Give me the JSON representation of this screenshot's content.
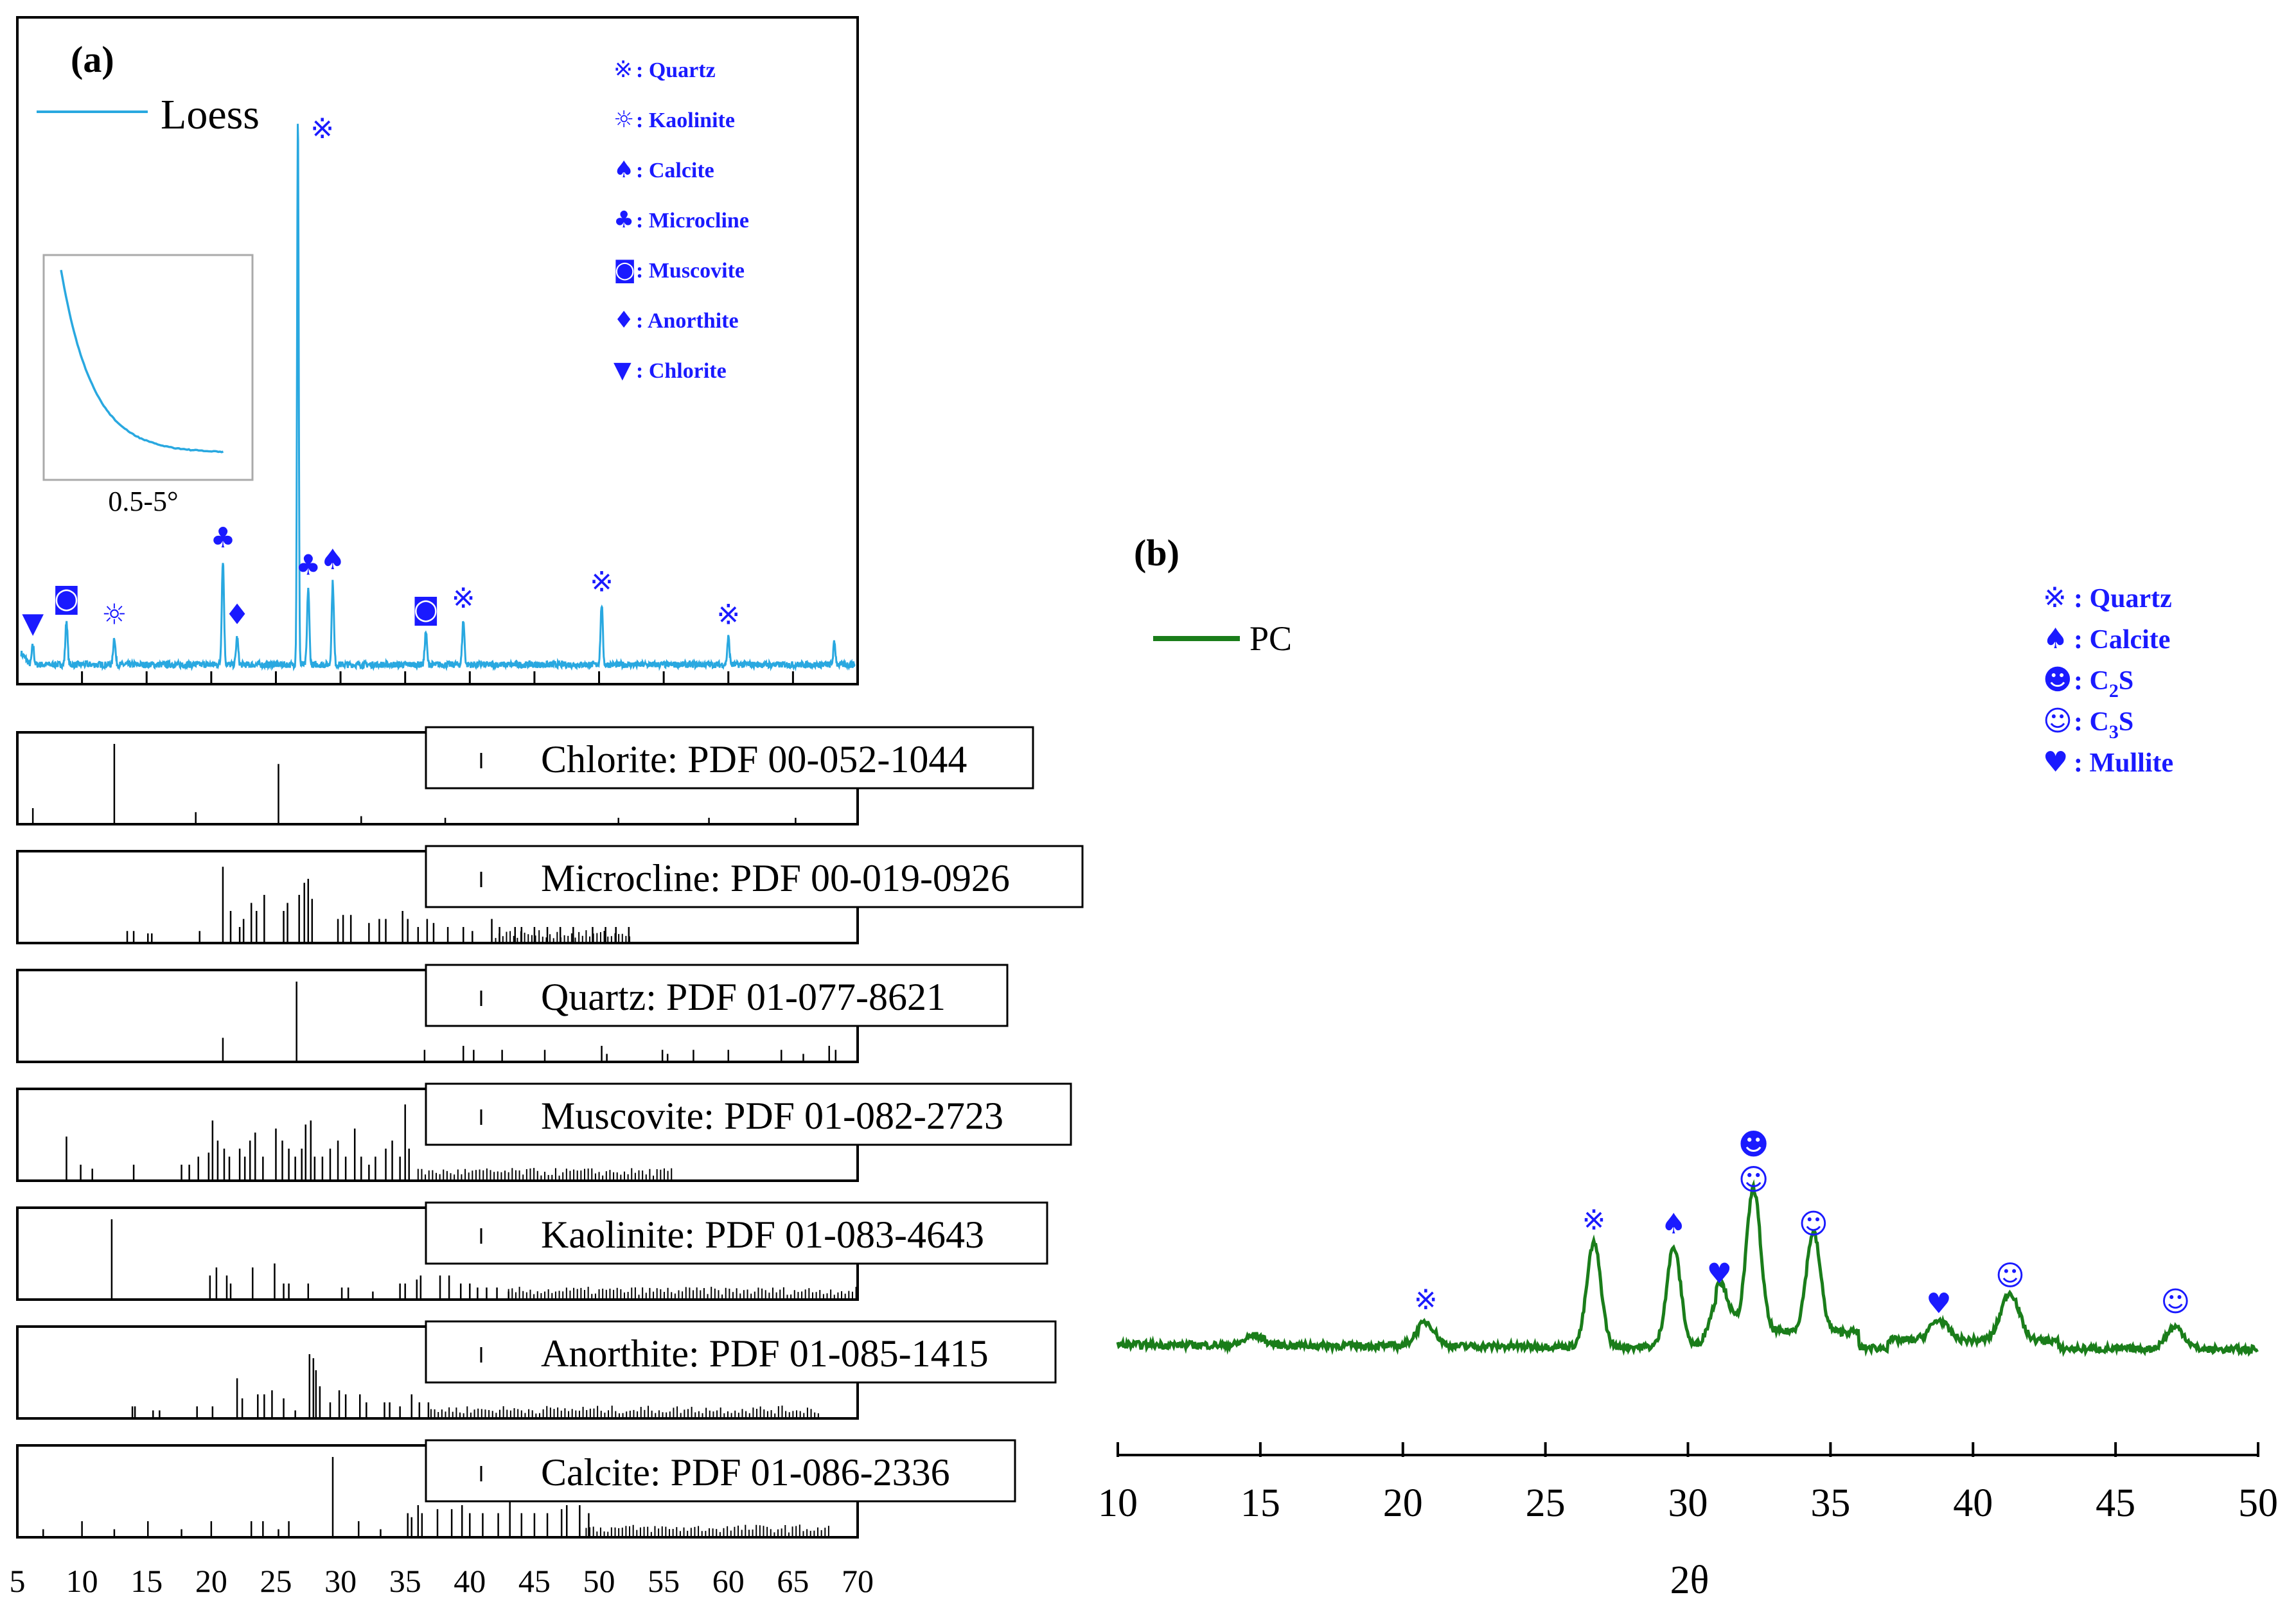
{
  "colors": {
    "loess": "#29a8e0",
    "pc": "#1a7d1a",
    "marker": "#1a1aff",
    "ref": "#000000"
  },
  "panel_a": {
    "label": "(a)",
    "legend_label": "Loess",
    "inset_label": "0.5-5°",
    "phase_legend": [
      {
        "symbol": "※",
        "text": ": Quartz"
      },
      {
        "symbol": "☼",
        "text": ": Kaolinite"
      },
      {
        "symbol": "♠",
        "text": ": Calcite"
      },
      {
        "symbol": "♣",
        "text": ": Microcline"
      },
      {
        "symbol": "◙",
        "text": ": Muscovite"
      },
      {
        "symbol": "♦",
        "text": ": Anorthite"
      },
      {
        "symbol": "▼",
        "text": ": Chlorite"
      }
    ],
    "ref_labels": [
      "Chlorite: PDF 00-052-1044",
      "Microcline: PDF 00-019-0926",
      "Quartz: PDF 01-077-8621",
      "Muscovite: PDF 01-082-2723",
      "Kaolinite: PDF 01-083-4643",
      "Anorthite: PDF 01-085-1415",
      "Calcite: PDF 01-086-2336"
    ],
    "x_ticks": [
      "5",
      "10",
      "15",
      "20",
      "25",
      "30",
      "35",
      "40",
      "45",
      "50",
      "55",
      "60",
      "65",
      "70"
    ]
  },
  "panel_b": {
    "label": "(b)",
    "legend_label": "PC",
    "xlabel": "2θ",
    "phase_legend": [
      {
        "symbol": "※",
        "text": ": Quartz",
        "sub": ""
      },
      {
        "symbol": "♠",
        "text": ": Calcite",
        "sub": ""
      },
      {
        "symbol": "☻",
        "text": ": C",
        "sub": "2",
        "tail": "S"
      },
      {
        "symbol": "☺",
        "text": ": C",
        "sub": "3",
        "tail": "S"
      },
      {
        "symbol": "♥",
        "text": ": Mullite",
        "sub": ""
      }
    ],
    "x_ticks": [
      "10",
      "15",
      "20",
      "25",
      "30",
      "35",
      "40",
      "45",
      "50"
    ]
  },
  "chart_data": [
    {
      "type": "line",
      "name": "Loess XRD",
      "xlim": [
        5,
        70
      ],
      "series": [
        {
          "name": "Loess",
          "peaks": [
            {
              "x": 6.2,
              "y": 0.035,
              "symbol": "▼"
            },
            {
              "x": 8.8,
              "y": 0.08,
              "symbol": "◙"
            },
            {
              "x": 12.5,
              "y": 0.05,
              "symbol": "☼"
            },
            {
              "x": 20.9,
              "y": 0.19,
              "symbol": "♣"
            },
            {
              "x": 22.0,
              "y": 0.05,
              "symbol": "♦"
            },
            {
              "x": 26.7,
              "y": 1.0,
              "symbol": "※"
            },
            {
              "x": 27.5,
              "y": 0.14,
              "symbol": "♣"
            },
            {
              "x": 29.4,
              "y": 0.15,
              "symbol": "♠"
            },
            {
              "x": 36.6,
              "y": 0.06,
              "symbol": "◙"
            },
            {
              "x": 39.5,
              "y": 0.08,
              "symbol": "※"
            },
            {
              "x": 50.2,
              "y": 0.11,
              "symbol": "※"
            },
            {
              "x": 60.0,
              "y": 0.05,
              "symbol": "※"
            },
            {
              "x": 68.2,
              "y": 0.04,
              "symbol": ""
            }
          ]
        }
      ],
      "inset": {
        "x_range": "0.5-5°",
        "trend": "monotonic decreasing"
      }
    },
    {
      "type": "bar",
      "name": "PDF reference patterns",
      "xlim": [
        5,
        70
      ],
      "series": [
        {
          "name": "Chlorite: PDF 00-052-1044",
          "lines": [
            [
              6.2,
              0.2
            ],
            [
              12.5,
              1
            ],
            [
              18.8,
              0.15
            ],
            [
              25.2,
              0.75
            ],
            [
              31.6,
              0.1
            ],
            [
              38.1,
              0.08
            ],
            [
              51.5,
              0.08
            ],
            [
              58.5,
              0.08
            ],
            [
              65.2,
              0.08
            ]
          ]
        },
        {
          "name": "Microcline: PDF 00-019-0926",
          "lines": [
            [
              13.5,
              0.15
            ],
            [
              14.0,
              0.15
            ],
            [
              15.1,
              0.12
            ],
            [
              15.4,
              0.12
            ],
            [
              19.1,
              0.15
            ],
            [
              20.9,
              0.95
            ],
            [
              21.5,
              0.4
            ],
            [
              22.2,
              0.2
            ],
            [
              22.5,
              0.3
            ],
            [
              23.1,
              0.5
            ],
            [
              23.5,
              0.4
            ],
            [
              24.1,
              0.6
            ],
            [
              25.6,
              0.4
            ],
            [
              25.9,
              0.5
            ],
            [
              26.8,
              0.6
            ],
            [
              27.2,
              0.75
            ],
            [
              27.5,
              0.8
            ],
            [
              27.8,
              0.55
            ],
            [
              29.8,
              0.3
            ],
            [
              30.2,
              0.35
            ],
            [
              30.8,
              0.35
            ],
            [
              32.2,
              0.25
            ],
            [
              33.0,
              0.3
            ],
            [
              33.5,
              0.3
            ],
            [
              34.8,
              0.4
            ],
            [
              35.2,
              0.3
            ],
            [
              36.0,
              0.2
            ],
            [
              36.7,
              0.3
            ],
            [
              37.2,
              0.25
            ],
            [
              38.3,
              0.2
            ],
            [
              39.5,
              0.2
            ],
            [
              40.2,
              0.15
            ],
            [
              41.7,
              0.3
            ],
            [
              42.3,
              0.2
            ],
            [
              43.5,
              0.2
            ],
            [
              44.0,
              0.2
            ],
            [
              45.0,
              0.2
            ],
            [
              46.0,
              0.2
            ],
            [
              47.0,
              0.2
            ],
            [
              48.0,
              0.2
            ],
            [
              49.5,
              0.2
            ],
            [
              50.5,
              0.2
            ],
            [
              51.3,
              0.2
            ],
            [
              52.3,
              0.2
            ]
          ]
        },
        {
          "name": "Quartz: PDF 01-077-8621",
          "lines": [
            [
              20.9,
              0.3
            ],
            [
              26.6,
              1
            ],
            [
              36.5,
              0.15
            ],
            [
              39.5,
              0.2
            ],
            [
              40.3,
              0.15
            ],
            [
              42.5,
              0.15
            ],
            [
              45.8,
              0.15
            ],
            [
              50.2,
              0.2
            ],
            [
              50.6,
              0.1
            ],
            [
              54.9,
              0.15
            ],
            [
              55.3,
              0.1
            ],
            [
              57.3,
              0.15
            ],
            [
              60.0,
              0.15
            ],
            [
              64.1,
              0.15
            ],
            [
              65.8,
              0.1
            ],
            [
              67.8,
              0.2
            ],
            [
              68.3,
              0.15
            ]
          ]
        },
        {
          "name": "Muscovite: PDF 01-082-2723",
          "lines": [
            [
              8.8,
              0.55
            ],
            [
              9.9,
              0.2
            ],
            [
              10.8,
              0.15
            ],
            [
              14.0,
              0.2
            ],
            [
              17.7,
              0.2
            ],
            [
              18.3,
              0.2
            ],
            [
              19.0,
              0.3
            ],
            [
              19.8,
              0.35
            ],
            [
              20.1,
              0.75
            ],
            [
              20.5,
              0.5
            ],
            [
              21.0,
              0.4
            ],
            [
              21.4,
              0.3
            ],
            [
              22.2,
              0.4
            ],
            [
              22.6,
              0.3
            ],
            [
              23.0,
              0.5
            ],
            [
              23.4,
              0.6
            ],
            [
              24.0,
              0.3
            ],
            [
              25.0,
              0.65
            ],
            [
              25.5,
              0.5
            ],
            [
              26.0,
              0.4
            ],
            [
              26.5,
              0.3
            ],
            [
              27.0,
              0.4
            ],
            [
              27.3,
              0.7
            ],
            [
              27.7,
              0.75
            ],
            [
              28.0,
              0.3
            ],
            [
              28.6,
              0.3
            ],
            [
              29.2,
              0.4
            ],
            [
              29.8,
              0.5
            ],
            [
              30.4,
              0.3
            ],
            [
              31.1,
              0.65
            ],
            [
              31.6,
              0.3
            ],
            [
              32.2,
              0.2
            ],
            [
              32.7,
              0.3
            ],
            [
              33.5,
              0.4
            ],
            [
              34.0,
              0.5
            ],
            [
              34.6,
              0.3
            ],
            [
              35.0,
              0.95
            ],
            [
              35.3,
              0.4
            ]
          ]
        },
        {
          "name": "Kaolinite: PDF 01-083-4643",
          "lines": [
            [
              12.3,
              1
            ],
            [
              19.9,
              0.3
            ],
            [
              20.4,
              0.4
            ],
            [
              21.2,
              0.3
            ],
            [
              21.5,
              0.2
            ],
            [
              23.2,
              0.4
            ],
            [
              24.9,
              0.45
            ],
            [
              25.6,
              0.2
            ],
            [
              26.0,
              0.2
            ],
            [
              27.5,
              0.2
            ],
            [
              30.1,
              0.15
            ],
            [
              30.6,
              0.15
            ],
            [
              32.5,
              0.1
            ],
            [
              34.6,
              0.2
            ],
            [
              35.0,
              0.2
            ],
            [
              35.9,
              0.25
            ],
            [
              36.2,
              0.3
            ],
            [
              37.7,
              0.3
            ],
            [
              38.4,
              0.3
            ],
            [
              39.3,
              0.2
            ],
            [
              40.0,
              0.2
            ],
            [
              40.6,
              0.15
            ],
            [
              41.3,
              0.15
            ],
            [
              42.1,
              0.15
            ],
            [
              43.0,
              0.1
            ]
          ]
        },
        {
          "name": "Anorthite: PDF 01-085-1415",
          "lines": [
            [
              13.9,
              0.15
            ],
            [
              14.1,
              0.15
            ],
            [
              15.5,
              0.1
            ],
            [
              16.0,
              0.1
            ],
            [
              18.9,
              0.15
            ],
            [
              20.1,
              0.15
            ],
            [
              22.0,
              0.5
            ],
            [
              22.4,
              0.25
            ],
            [
              23.6,
              0.3
            ],
            [
              24.1,
              0.3
            ],
            [
              24.7,
              0.35
            ],
            [
              25.6,
              0.25
            ],
            [
              26.5,
              0.1
            ],
            [
              27.6,
              0.8
            ],
            [
              27.9,
              0.75
            ],
            [
              28.1,
              0.6
            ],
            [
              28.4,
              0.4
            ],
            [
              29.2,
              0.2
            ],
            [
              29.9,
              0.35
            ],
            [
              30.4,
              0.3
            ],
            [
              31.5,
              0.3
            ],
            [
              32.0,
              0.2
            ],
            [
              33.4,
              0.2
            ],
            [
              33.8,
              0.2
            ],
            [
              34.6,
              0.15
            ],
            [
              35.5,
              0.3
            ],
            [
              36.1,
              0.2
            ],
            [
              36.8,
              0.2
            ]
          ]
        },
        {
          "name": "Calcite: PDF 01-086-2336",
          "lines": [
            [
              7.0,
              0.1
            ],
            [
              10.0,
              0.2
            ],
            [
              12.5,
              0.1
            ],
            [
              15.1,
              0.2
            ],
            [
              17.7,
              0.1
            ],
            [
              20.0,
              0.2
            ],
            [
              23.1,
              0.2
            ],
            [
              24.0,
              0.2
            ],
            [
              25.2,
              0.1
            ],
            [
              26.0,
              0.2
            ],
            [
              29.4,
              1
            ],
            [
              31.4,
              0.2
            ],
            [
              33.1,
              0.1
            ],
            [
              35.2,
              0.3
            ],
            [
              35.5,
              0.25
            ],
            [
              36.0,
              0.4
            ],
            [
              36.3,
              0.3
            ],
            [
              37.5,
              0.35
            ],
            [
              38.6,
              0.35
            ],
            [
              39.4,
              0.4
            ],
            [
              40.0,
              0.3
            ],
            [
              41.0,
              0.3
            ],
            [
              42.2,
              0.3
            ],
            [
              43.1,
              0.45
            ],
            [
              44.0,
              0.3
            ],
            [
              45.0,
              0.3
            ],
            [
              46.0,
              0.3
            ],
            [
              47.1,
              0.35
            ],
            [
              47.5,
              0.4
            ],
            [
              48.5,
              0.4
            ],
            [
              49.2,
              0.3
            ]
          ]
        }
      ]
    },
    {
      "type": "line",
      "name": "PC XRD",
      "xlim": [
        10,
        50
      ],
      "xlabel": "2θ",
      "series": [
        {
          "name": "PC",
          "peaks": [
            {
              "x": 14.8,
              "y": 0.05,
              "symbol": ""
            },
            {
              "x": 20.8,
              "y": 0.12,
              "symbol": "※"
            },
            {
              "x": 26.7,
              "y": 0.52,
              "symbol": "※"
            },
            {
              "x": 29.5,
              "y": 0.5,
              "symbol": "♠"
            },
            {
              "x": 31.1,
              "y": 0.25,
              "symbol": "♥"
            },
            {
              "x": 32.3,
              "y": 0.72,
              "symbol": "☻☺"
            },
            {
              "x": 34.4,
              "y": 0.5,
              "symbol": "☺"
            },
            {
              "x": 38.8,
              "y": 0.1,
              "symbol": "♥"
            },
            {
              "x": 41.3,
              "y": 0.24,
              "symbol": "☺"
            },
            {
              "x": 47.1,
              "y": 0.11,
              "symbol": "☺"
            }
          ]
        }
      ]
    }
  ]
}
